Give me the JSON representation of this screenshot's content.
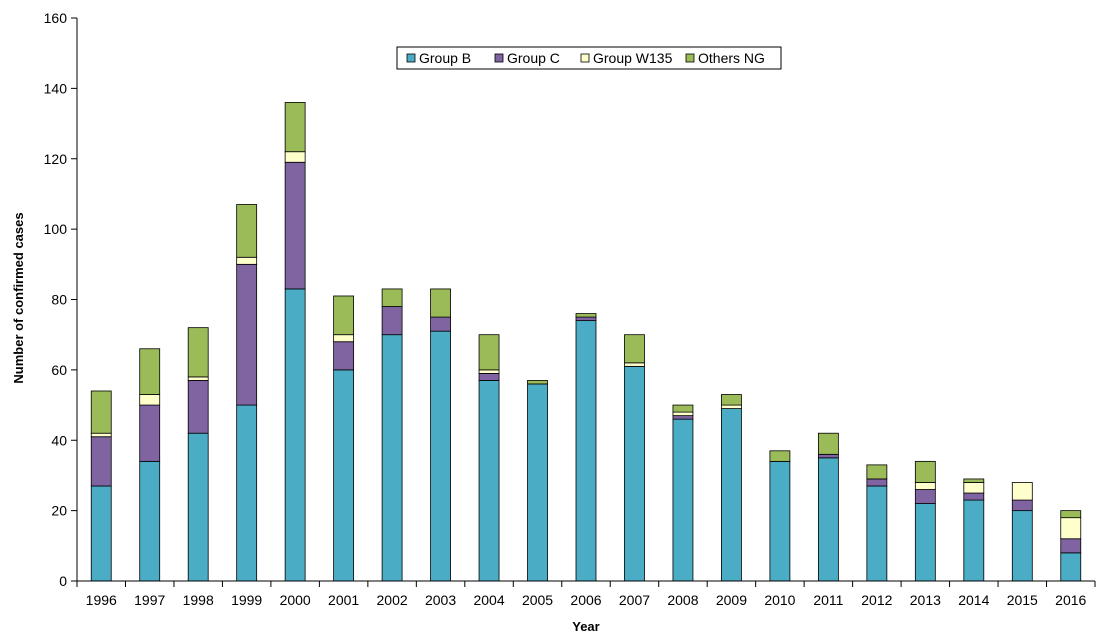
{
  "chart_data": {
    "type": "bar",
    "stacked": true,
    "title": "",
    "xlabel": "Year",
    "ylabel": "Number of confirmed cases",
    "ylim": [
      0,
      160
    ],
    "yticks": [
      0,
      20,
      40,
      60,
      80,
      100,
      120,
      140,
      160
    ],
    "grid": false,
    "legend_position": "top-center",
    "categories": [
      "1996",
      "1997",
      "1998",
      "1999",
      "2000",
      "2001",
      "2002",
      "2003",
      "2004",
      "2005",
      "2006",
      "2007",
      "2008",
      "2009",
      "2010",
      "2011",
      "2012",
      "2013",
      "2014",
      "2015",
      "2016"
    ],
    "series": [
      {
        "name": "Group B",
        "color": "#4bacc6",
        "values": [
          27,
          34,
          42,
          50,
          83,
          60,
          70,
          71,
          57,
          56,
          74,
          61,
          46,
          49,
          34,
          35,
          27,
          22,
          23,
          20,
          8
        ]
      },
      {
        "name": "Group C",
        "color": "#8064a2",
        "values": [
          14,
          16,
          15,
          40,
          36,
          8,
          8,
          4,
          2,
          0,
          1,
          0,
          1,
          0,
          0,
          1,
          2,
          4,
          2,
          3,
          4
        ]
      },
      {
        "name": "Group W135",
        "color": "#ffffcc",
        "values": [
          1,
          3,
          1,
          2,
          3,
          2,
          0,
          0,
          1,
          0,
          0,
          1,
          1,
          1,
          0,
          0,
          0,
          2,
          3,
          5,
          6
        ]
      },
      {
        "name": "Others NG",
        "color": "#9bbb59",
        "values": [
          12,
          13,
          14,
          15,
          14,
          11,
          5,
          8,
          10,
          1,
          1,
          8,
          2,
          3,
          3,
          6,
          4,
          6,
          1,
          0,
          2
        ]
      }
    ]
  }
}
